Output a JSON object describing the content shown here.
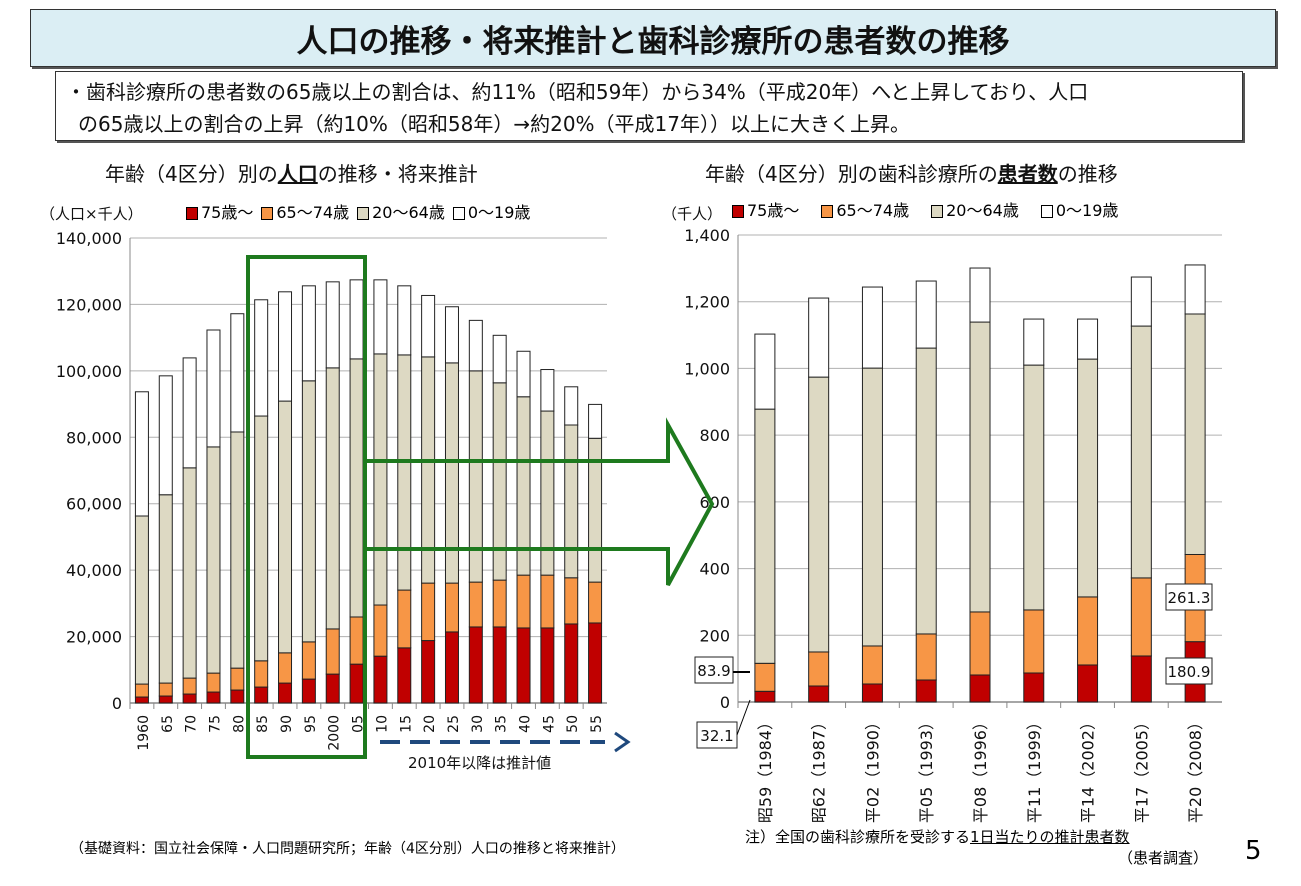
{
  "title": "人口の推移・将来推計と歯科診療所の患者数の推移",
  "summary": {
    "line1": "・歯科診療所の患者数の65歳以上の割合は、約11%（昭和59年）から34%（平成20年）へと上昇しており、人口",
    "line2": "の65歳以上の割合の上昇（約10%（昭和58年）→約20%（平成17年））以上に大きく上昇。"
  },
  "left": {
    "title_pre": "年齢（4区分）別の",
    "title_em": "人口",
    "title_post": "の推移・将来推計",
    "unit": "（人口×千人）",
    "projection_note": "2010年以降は推計値",
    "source": "（基礎資料：国立社会保障・人口問題研究所；年齢（4区分別）人口の推移と将来推計）"
  },
  "right": {
    "title_pre": "年齢（4区分）別の歯科診療所の",
    "title_em": "患者数",
    "title_post": "の推移",
    "unit": "（千人）",
    "note_pre": "注）全国の歯科診療所を受診する",
    "note_em": "1日当たりの推計患者数",
    "note_src": "（患者調査）"
  },
  "page_number": "5",
  "colors": {
    "75+": "#c00000",
    "65-74": "#f79646",
    "20-64": "#ddd9c3",
    "0-19": "#ffffff",
    "highlight": "#1e7a1e",
    "projection": "#1f497d"
  },
  "chart_data": [
    {
      "type": "bar",
      "stacked": true,
      "title": "年齢（4区分）別の人口の推移・将来推計",
      "ylabel": "（人口×千人）",
      "ylim": [
        0,
        140000
      ],
      "yticks": [
        "0",
        "20,000",
        "40,000",
        "60,000",
        "80,000",
        "100,000",
        "120,000",
        "140,000"
      ],
      "grid": true,
      "legend": "top",
      "categories": [
        "1960",
        "65",
        "70",
        "75",
        "80",
        "85",
        "90",
        "95",
        "2000",
        "05",
        "10",
        "15",
        "20",
        "25",
        "30",
        "35",
        "40",
        "45",
        "50",
        "55"
      ],
      "series": [
        {
          "name": "75歳～",
          "key": "75+",
          "values": [
            1800,
            2100,
            2700,
            3300,
            3900,
            4800,
            6000,
            7200,
            8700,
            11700,
            14100,
            16600,
            18800,
            21400,
            22900,
            22900,
            22600,
            22600,
            23800,
            24100
          ]
        },
        {
          "name": "65～74歳",
          "key": "65-74",
          "values": [
            3900,
            3900,
            4800,
            5700,
            6600,
            7900,
            9100,
            11200,
            13600,
            14200,
            15400,
            17400,
            17300,
            14700,
            13500,
            14100,
            15900,
            15900,
            13900,
            12300
          ]
        },
        {
          "name": "20～64歳",
          "key": "20-64",
          "values": [
            50600,
            56700,
            63300,
            68100,
            71100,
            73700,
            75800,
            78600,
            78600,
            77700,
            75600,
            70800,
            68100,
            66300,
            63600,
            59400,
            53700,
            49400,
            46000,
            43300
          ]
        },
        {
          "name": "0～19歳",
          "key": "0-19",
          "values": [
            37400,
            35800,
            33100,
            35200,
            35600,
            35000,
            32900,
            28600,
            25900,
            23800,
            22300,
            20800,
            18500,
            16900,
            15200,
            14300,
            13700,
            12500,
            11500,
            10200
          ]
        }
      ]
    },
    {
      "type": "bar",
      "stacked": true,
      "title": "年齢（4区分）別の歯科診療所の患者数の推移",
      "ylabel": "（千人）",
      "ylim": [
        0,
        1400
      ],
      "yticks": [
        "0",
        "200",
        "400",
        "600",
        "800",
        "1,000",
        "1,200",
        "1,400"
      ],
      "grid": true,
      "legend": "top",
      "categories": [
        "昭59（1984）",
        "昭62（1987）",
        "平02（1990）",
        "平05（1993）",
        "平08（1996）",
        "平11（1999）",
        "平14（2002）",
        "平17（2005）",
        "平20（2008）"
      ],
      "series": [
        {
          "name": "75歳～",
          "key": "75+",
          "values": [
            32.1,
            48,
            54,
            66,
            81,
            87,
            111,
            138,
            180.9
          ]
        },
        {
          "name": "65～74歳",
          "key": "65-74",
          "values": [
            83.9,
            102,
            114,
            138,
            189,
            189,
            204,
            234,
            261.3
          ]
        },
        {
          "name": "20～64歳",
          "key": "20-64",
          "values": [
            762,
            824,
            833,
            857,
            869,
            734,
            713,
            755,
            721
          ]
        },
        {
          "name": "0～19歳",
          "key": "0-19",
          "values": [
            225,
            237,
            243,
            201,
            162,
            138,
            120,
            147,
            147
          ]
        }
      ],
      "data_labels": [
        "83.9",
        "32.1",
        "261.3",
        "180.9"
      ]
    }
  ]
}
